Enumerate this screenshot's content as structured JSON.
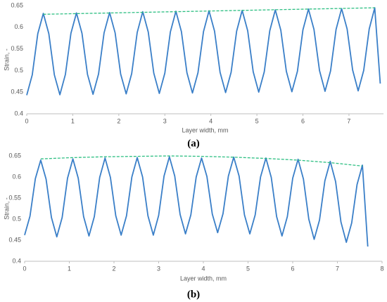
{
  "chart_data": [
    {
      "type": "line",
      "label": "(a)",
      "x_label": "Layer width, mm",
      "y_label": "Strain, -",
      "x": [
        0,
        0.12,
        0.24,
        0.36,
        0.48,
        0.6,
        0.72,
        0.84,
        0.96,
        1.08,
        1.2,
        1.32,
        1.44,
        1.56,
        1.68,
        1.8,
        1.92,
        2.04,
        2.16,
        2.28,
        2.4,
        2.52,
        2.64,
        2.76,
        2.88,
        3,
        3.12,
        3.24,
        3.36,
        3.48,
        3.6,
        3.72,
        3.84,
        3.96,
        4.08,
        4.2,
        4.32,
        4.44,
        4.56,
        4.68,
        4.8,
        4.92,
        5.04,
        5.16,
        5.28,
        5.4,
        5.52,
        5.64,
        5.76,
        5.88,
        6,
        6.12,
        6.24,
        6.36,
        6.48,
        6.6,
        6.72,
        6.84,
        6.96,
        7.08,
        7.2,
        7.32,
        7.44,
        7.56,
        7.68
      ],
      "series": [
        {
          "color": "#3a7fc8",
          "values": [
            0.443,
            0.49,
            0.585,
            0.632,
            0.585,
            0.49,
            0.444,
            0.491,
            0.586,
            0.633,
            0.586,
            0.491,
            0.445,
            0.492,
            0.587,
            0.634,
            0.587,
            0.492,
            0.446,
            0.493,
            0.588,
            0.636,
            0.589,
            0.494,
            0.447,
            0.494,
            0.589,
            0.637,
            0.59,
            0.495,
            0.448,
            0.495,
            0.59,
            0.638,
            0.591,
            0.496,
            0.449,
            0.496,
            0.591,
            0.639,
            0.592,
            0.497,
            0.45,
            0.497,
            0.592,
            0.64,
            0.593,
            0.498,
            0.451,
            0.498,
            0.594,
            0.642,
            0.595,
            0.5,
            0.452,
            0.499,
            0.595,
            0.643,
            0.596,
            0.501,
            0.453,
            0.5,
            0.596,
            0.645,
            0.47
          ]
        },
        {
          "color": "#2dbf82",
          "dashed": true,
          "x": [
            0.36,
            7.56
          ],
          "values": [
            0.63,
            0.645
          ]
        }
      ],
      "xlim": [
        0,
        7.75
      ],
      "xticks": [
        0,
        1,
        2,
        3,
        4,
        5,
        6,
        7
      ],
      "ylim": [
        0.4,
        0.65
      ],
      "yticks": [
        0.4,
        0.45,
        0.5,
        0.55,
        0.6,
        0.65
      ],
      "grid": false
    },
    {
      "type": "line",
      "label": "(b)",
      "x_label": "Layer width, mm",
      "y_label": "Strain, -",
      "x": [
        0,
        0.12,
        0.24,
        0.36,
        0.48,
        0.6,
        0.72,
        0.84,
        0.96,
        1.08,
        1.2,
        1.32,
        1.44,
        1.56,
        1.68,
        1.8,
        1.92,
        2.04,
        2.16,
        2.28,
        2.4,
        2.52,
        2.64,
        2.76,
        2.88,
        3,
        3.12,
        3.24,
        3.36,
        3.48,
        3.6,
        3.72,
        3.84,
        3.96,
        4.08,
        4.2,
        4.32,
        4.44,
        4.56,
        4.68,
        4.8,
        4.92,
        5.04,
        5.16,
        5.28,
        5.4,
        5.52,
        5.64,
        5.76,
        5.88,
        6,
        6.12,
        6.24,
        6.36,
        6.48,
        6.6,
        6.72,
        6.84,
        6.96,
        7.08,
        7.2,
        7.32,
        7.44,
        7.56,
        7.68
      ],
      "series": [
        {
          "color": "#3a7fc8",
          "values": [
            0.462,
            0.507,
            0.596,
            0.64,
            0.595,
            0.504,
            0.458,
            0.504,
            0.597,
            0.643,
            0.597,
            0.506,
            0.46,
            0.506,
            0.599,
            0.645,
            0.599,
            0.508,
            0.462,
            0.508,
            0.6,
            0.646,
            0.6,
            0.508,
            0.462,
            0.509,
            0.602,
            0.648,
            0.602,
            0.511,
            0.465,
            0.51,
            0.6,
            0.645,
            0.601,
            0.512,
            0.468,
            0.513,
            0.602,
            0.647,
            0.602,
            0.51,
            0.465,
            0.51,
            0.6,
            0.645,
            0.599,
            0.506,
            0.46,
            0.506,
            0.597,
            0.642,
            0.595,
            0.5,
            0.452,
            0.498,
            0.591,
            0.637,
            0.589,
            0.493,
            0.445,
            0.491,
            0.582,
            0.628,
            0.435
          ]
        },
        {
          "color": "#2dbf82",
          "dashed": true,
          "x": [
            0.36,
            1.08,
            1.8,
            2.52,
            3.24,
            3.96,
            4.68,
            5.4,
            6.12,
            6.84,
            7.56
          ],
          "values": [
            0.643,
            0.646,
            0.648,
            0.649,
            0.65,
            0.649,
            0.647,
            0.644,
            0.64,
            0.634,
            0.626
          ]
        }
      ],
      "xlim": [
        0,
        8
      ],
      "xticks": [
        0,
        1,
        2,
        3,
        4,
        5,
        6,
        7,
        8
      ],
      "ylim": [
        0.4,
        0.65
      ],
      "yticks": [
        0.4,
        0.45,
        0.5,
        0.55,
        0.6,
        0.65
      ],
      "grid": false
    }
  ]
}
